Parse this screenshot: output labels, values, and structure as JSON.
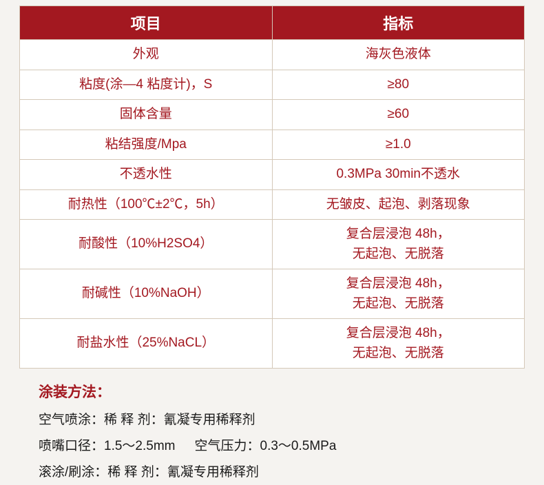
{
  "table": {
    "header_bg": "#a31820",
    "header_color": "#ffffff",
    "cell_color": "#a31820",
    "border_color": "#d4c8b8",
    "columns": [
      "项目",
      "指标"
    ],
    "rows": [
      {
        "item": "外观",
        "spec": "海灰色液体"
      },
      {
        "item": "粘度(涂—4 粘度计)，S",
        "spec": "≥80"
      },
      {
        "item": "固体含量",
        "spec": "≥60"
      },
      {
        "item": "粘结强度/Mpa",
        "spec": "≥1.0"
      },
      {
        "item": "不透水性",
        "spec": "0.3MPa 30min不透水"
      },
      {
        "item": "耐热性（100℃±2℃，5h）",
        "spec": "无皱皮、起泡、剥落现象"
      },
      {
        "item": "耐酸性（10%H2SO4）",
        "spec": "复合层浸泡 48h，\n无起泡、无脱落"
      },
      {
        "item": "耐碱性（10%NaOH）",
        "spec": "复合层浸泡 48h，\n无起泡、无脱落"
      },
      {
        "item": "耐盐水性（25%NaCL）",
        "spec": "复合层浸泡 48h，\n无起泡、无脱落"
      }
    ]
  },
  "notes": {
    "title": "涂装方法：",
    "lines": [
      {
        "label1": "空气喷涂：",
        "label2": "稀 释 剂：",
        "value": "氰凝专用稀释剂"
      },
      {
        "label1": "喷嘴口径：",
        "value1": "1.5～2.5mm",
        "label2": "空气压力：",
        "value2": "0.3～0.5MPa"
      },
      {
        "label1": "滚涂/刷涂：",
        "label2": "稀 释 剂：",
        "value": "氰凝专用稀释剂"
      }
    ]
  }
}
